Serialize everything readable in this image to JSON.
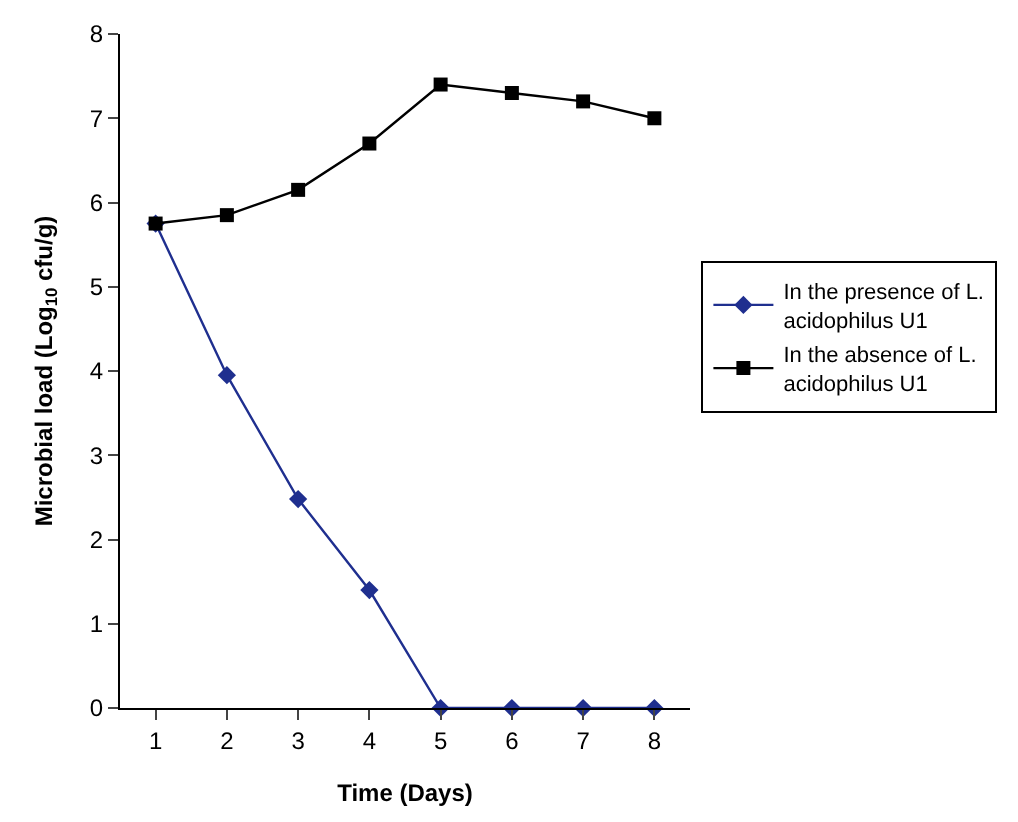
{
  "chart_data": {
    "type": "line",
    "xlabel": "Time (Days)",
    "ylabel": "Microbial load (Log$_{10}$ cfu/g)",
    "categories": [
      "1",
      "2",
      "3",
      "4",
      "5",
      "6",
      "7",
      "8"
    ],
    "series": [
      {
        "name": "In the presence of L. acidophilus U1",
        "color": "#1f2f8f",
        "marker": "diamond",
        "values": [
          5.75,
          3.95,
          2.48,
          1.4,
          0,
          0,
          0,
          0
        ]
      },
      {
        "name": "In the absence of L. acidophilus U1",
        "color": "#000000",
        "marker": "square",
        "values": [
          5.75,
          5.85,
          6.15,
          6.7,
          7.4,
          7.3,
          7.2,
          7.0
        ]
      }
    ],
    "ylim": [
      0,
      8
    ],
    "yticks": [
      0,
      1,
      2,
      3,
      4,
      5,
      6,
      7,
      8
    ],
    "legend": "right",
    "line_style": "solid"
  }
}
